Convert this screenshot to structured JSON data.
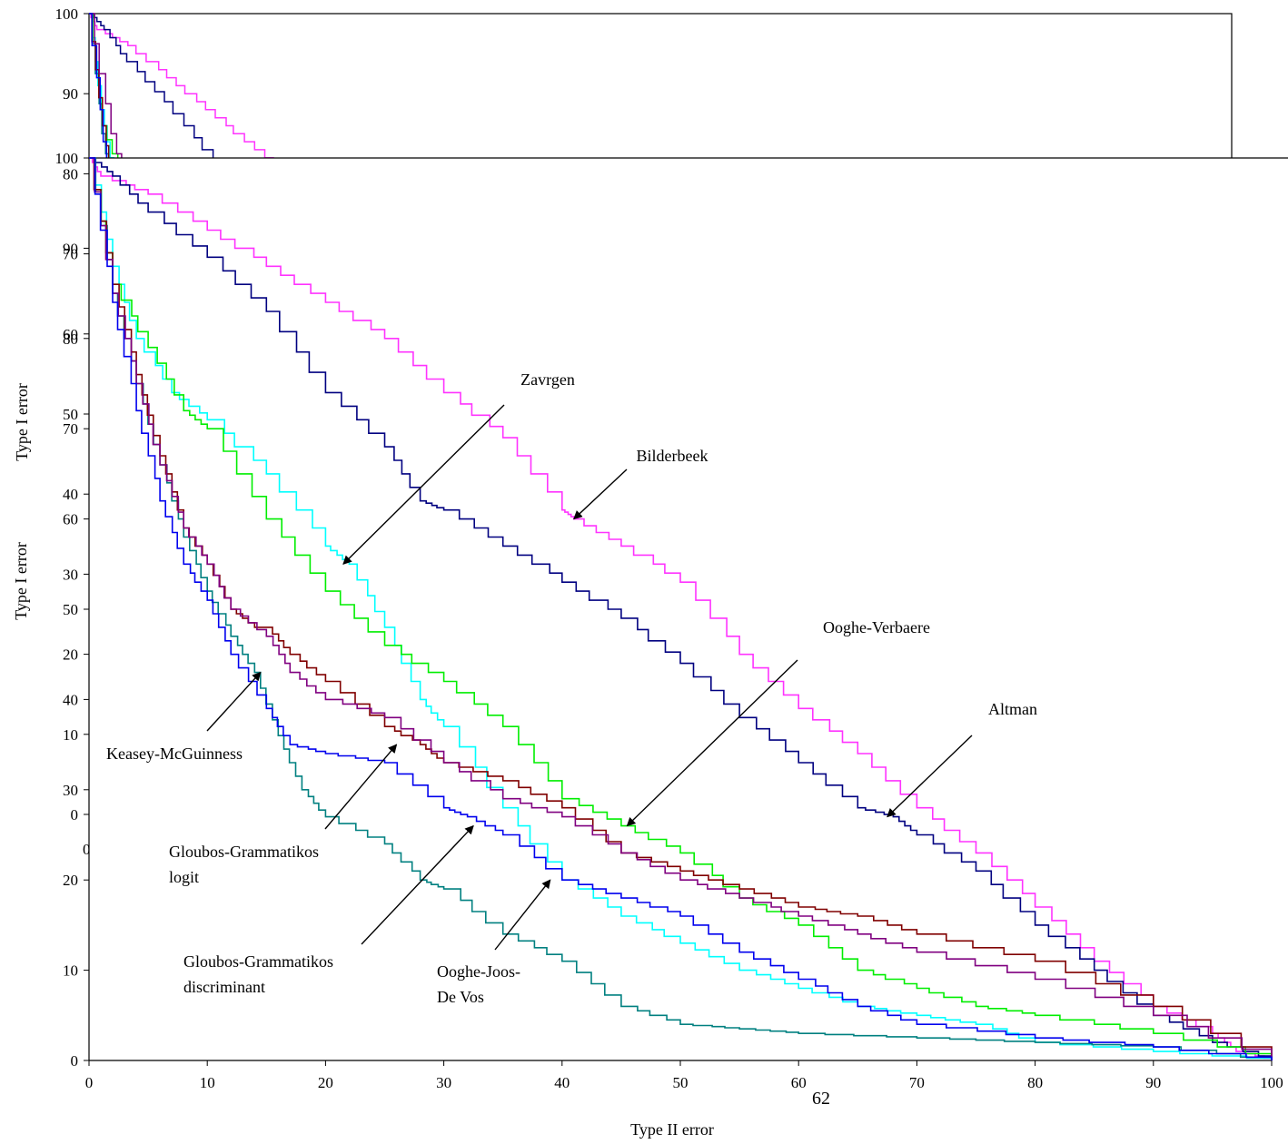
{
  "page_number": "62",
  "back_panel": {
    "ylabel": "Type I error",
    "ytick_labels": [
      "100",
      "90",
      "80",
      "70",
      "60",
      "50",
      "40",
      "30",
      "20",
      "10",
      "0"
    ],
    "partial_x_tick": "0"
  },
  "chart_data": {
    "type": "line",
    "title": "",
    "xlabel": "Type II error",
    "ylabel": "Type I error",
    "xlim": [
      0,
      100
    ],
    "ylim": [
      0,
      100
    ],
    "x_ticks": [
      0,
      10,
      20,
      30,
      40,
      50,
      60,
      70,
      80,
      90,
      100
    ],
    "y_ticks": [
      0,
      10,
      20,
      30,
      40,
      50,
      60,
      70,
      80,
      90,
      100
    ],
    "x_tick_labels": [
      "0",
      "10",
      "20",
      "30",
      "40",
      "50",
      "60",
      "70",
      "80",
      "90",
      "100"
    ],
    "y_tick_labels": [
      "0",
      "10",
      "20",
      "30",
      "40",
      "50",
      "60",
      "70",
      "80",
      "90",
      "100"
    ],
    "grid": false,
    "legend": "none",
    "series": [
      {
        "name": "Bilderbeek",
        "color": "#ff33ff",
        "x": [
          0,
          1,
          5,
          10,
          15,
          20,
          25,
          30,
          35,
          40,
          41,
          45,
          50,
          55,
          60,
          65,
          70,
          75,
          80,
          85,
          90,
          95,
          97,
          100
        ],
        "y": [
          100,
          98,
          96,
          92,
          88,
          84,
          80,
          74,
          69,
          61,
          60,
          57,
          53,
          45,
          39,
          34,
          28,
          23,
          17,
          11,
          6,
          3,
          1,
          0
        ]
      },
      {
        "name": "Altman",
        "color": "#000080",
        "x": [
          0,
          2,
          5,
          10,
          15,
          20,
          25,
          28,
          30,
          35,
          40,
          45,
          50,
          55,
          60,
          65,
          68,
          70,
          75,
          80,
          85,
          90,
          95,
          100
        ],
        "y": [
          100,
          98,
          94,
          89,
          83,
          74,
          68,
          62,
          61,
          57,
          53,
          49,
          44,
          38,
          33,
          28,
          27,
          25,
          21,
          15,
          10,
          5,
          2,
          0
        ]
      },
      {
        "name": "Zavrgen",
        "color": "#00ffff",
        "x": [
          0,
          2,
          4,
          7,
          10,
          15,
          20,
          22,
          25,
          28,
          30,
          35,
          40,
          45,
          50,
          55,
          60,
          65,
          70,
          75,
          80,
          90,
          100
        ],
        "y": [
          100,
          88,
          80,
          74,
          71,
          65,
          57,
          55,
          48,
          40,
          37,
          28,
          20,
          16,
          13,
          10,
          8,
          6,
          5,
          4,
          2,
          1,
          0
        ]
      },
      {
        "name": "Ooghe-Verbaere",
        "color": "#00ee00",
        "x": [
          0,
          2,
          5,
          8,
          10,
          15,
          20,
          25,
          30,
          35,
          40,
          45,
          50,
          55,
          60,
          65,
          70,
          75,
          80,
          90,
          100
        ],
        "y": [
          100,
          86,
          79,
          72,
          70,
          60,
          52,
          46,
          42,
          37,
          29,
          26,
          23,
          18,
          15,
          10,
          8,
          6,
          5,
          3,
          0
        ]
      },
      {
        "name": "Keasey-McGuinness",
        "color": "#008080",
        "x": [
          0,
          2,
          4,
          6,
          8,
          10,
          12,
          14,
          16,
          18,
          20,
          25,
          28,
          30,
          35,
          40,
          45,
          50,
          55,
          60,
          70,
          80,
          90,
          100
        ],
        "y": [
          100,
          85,
          75,
          66,
          58,
          52,
          47,
          43,
          36,
          30,
          27,
          24,
          20,
          19,
          14,
          11,
          6,
          4,
          3.5,
          3,
          2.5,
          2,
          1.5,
          0
        ]
      },
      {
        "name": "Gloubos-Grammatikos logit",
        "color": "#800000",
        "x": [
          0,
          2,
          4,
          6,
          8,
          10,
          12,
          14,
          15,
          17,
          20,
          25,
          28,
          30,
          35,
          40,
          45,
          50,
          55,
          60,
          65,
          70,
          80,
          90,
          100
        ],
        "y": [
          100,
          86,
          76,
          67,
          59,
          55,
          50,
          48,
          48,
          45,
          42,
          37,
          35,
          33,
          31,
          28,
          23,
          21,
          19,
          17,
          16,
          14,
          11,
          6,
          0
        ]
      },
      {
        "name": "Gloubos-Grammatikos discriminant",
        "color": "#800080",
        "x": [
          0,
          2,
          4,
          6,
          8,
          10,
          12,
          15,
          17,
          20,
          25,
          30,
          35,
          40,
          45,
          50,
          55,
          60,
          65,
          70,
          80,
          90,
          100
        ],
        "y": [
          100,
          85,
          75,
          66,
          59,
          55,
          50,
          47,
          43,
          40,
          38,
          33,
          29,
          27,
          23,
          20,
          18,
          16,
          14,
          12,
          9,
          5,
          0
        ]
      },
      {
        "name": "Ooghe-Joos-De Vos",
        "color": "#0000ee",
        "x": [
          0,
          2,
          4,
          6,
          8,
          10,
          12,
          15,
          17,
          20,
          25,
          30,
          32,
          35,
          40,
          45,
          50,
          55,
          60,
          65,
          70,
          80,
          90,
          100
        ],
        "y": [
          100,
          84,
          72,
          62,
          55,
          51,
          45,
          39,
          35,
          34,
          33,
          28,
          27,
          25,
          20,
          18,
          16,
          12,
          9,
          6,
          4,
          2.5,
          1.5,
          0
        ]
      }
    ],
    "annotations": [
      {
        "lines": [
          "Zavrgen"
        ],
        "series": "Zavrgen",
        "point": [
          21.5,
          55
        ]
      },
      {
        "lines": [
          "Bilderbeek"
        ],
        "series": "Bilderbeek",
        "point": [
          41,
          60
        ]
      },
      {
        "lines": [
          "Ooghe-Verbaere"
        ],
        "series": "Ooghe-Verbaere",
        "point": [
          45.5,
          26
        ]
      },
      {
        "lines": [
          "Altman"
        ],
        "series": "Altman",
        "point": [
          67.5,
          27
        ]
      },
      {
        "lines": [
          "Keasey-McGuinness"
        ],
        "series": "Keasey-McGuinness",
        "point": [
          14.5,
          43
        ]
      },
      {
        "lines": [
          "Gloubos-Grammatikos",
          "logit"
        ],
        "series": "Gloubos-Grammatikos logit",
        "point": [
          26,
          35
        ]
      },
      {
        "lines": [
          "Gloubos-Grammatikos",
          "discriminant"
        ],
        "series": "Gloubos-Grammatikos discriminant",
        "point": [
          32.5,
          26
        ]
      },
      {
        "lines": [
          "Ooghe-Joos-",
          "De Vos"
        ],
        "series": "Ooghe-Joos-De Vos",
        "point": [
          39,
          20
        ]
      }
    ]
  }
}
